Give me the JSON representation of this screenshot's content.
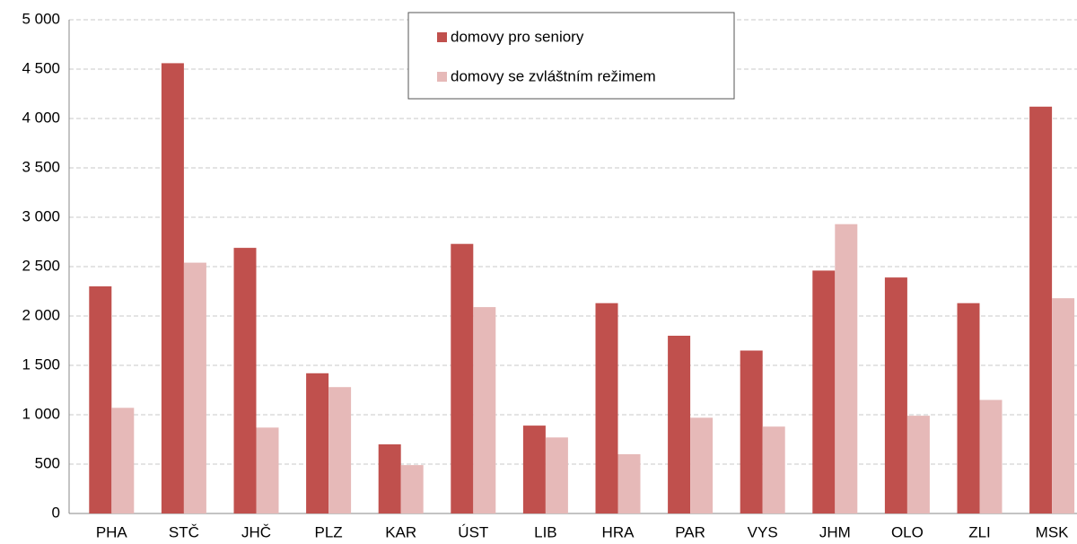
{
  "chart_data": {
    "type": "bar",
    "categories": [
      "PHA",
      "STČ",
      "JHČ",
      "PLZ",
      "KAR",
      "ÚST",
      "LIB",
      "HRA",
      "PAR",
      "VYS",
      "JHM",
      "OLO",
      "ZLI",
      "MSK"
    ],
    "series": [
      {
        "name": "domovy pro seniory",
        "color": "#c0504d",
        "values": [
          2300,
          4560,
          2690,
          1420,
          700,
          2730,
          890,
          2130,
          1800,
          1650,
          2460,
          2390,
          2130,
          4120
        ]
      },
      {
        "name": "domovy se zvláštním režimem",
        "color": "#e6b9b8",
        "values": [
          1070,
          2540,
          870,
          1280,
          490,
          2090,
          770,
          600,
          970,
          880,
          2930,
          990,
          1150,
          2180
        ]
      }
    ],
    "ylim": [
      0,
      5000
    ],
    "yticks": [
      0,
      500,
      {
        "value": 1000,
        "label": "1 000"
      },
      {
        "value": 1500,
        "label": "1 500"
      },
      {
        "value": 2000,
        "label": "2 000"
      },
      {
        "value": 2500,
        "label": "2 500"
      },
      {
        "value": 3000,
        "label": "3 000"
      },
      {
        "value": 3500,
        "label": "3 500"
      },
      {
        "value": 4000,
        "label": "4 000"
      },
      {
        "value": 4500,
        "label": "4 500"
      },
      {
        "value": 5000,
        "label": "5 000"
      }
    ],
    "grid": true,
    "legend": "top"
  }
}
